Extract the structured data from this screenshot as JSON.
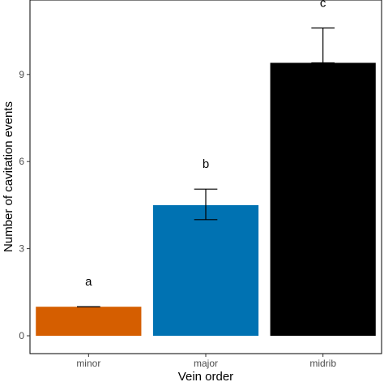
{
  "chart_data": {
    "type": "bar",
    "categories": [
      "minor",
      "major",
      "midrib"
    ],
    "values": [
      1.0,
      4.5,
      9.4
    ],
    "error_upper": [
      1.0,
      5.05,
      10.6
    ],
    "error_lower": [
      1.0,
      4.0,
      9.4
    ],
    "significance_labels": [
      "a",
      "b",
      "c"
    ],
    "bar_colors": [
      "#d55e00",
      "#0072b2",
      "#000000"
    ],
    "xlabel": "Vein order",
    "ylabel": "Number of cavitation events",
    "yticks": [
      0,
      3,
      6,
      9
    ],
    "ylim": [
      -0.45,
      11.0
    ],
    "grid": false,
    "legend": "none"
  }
}
